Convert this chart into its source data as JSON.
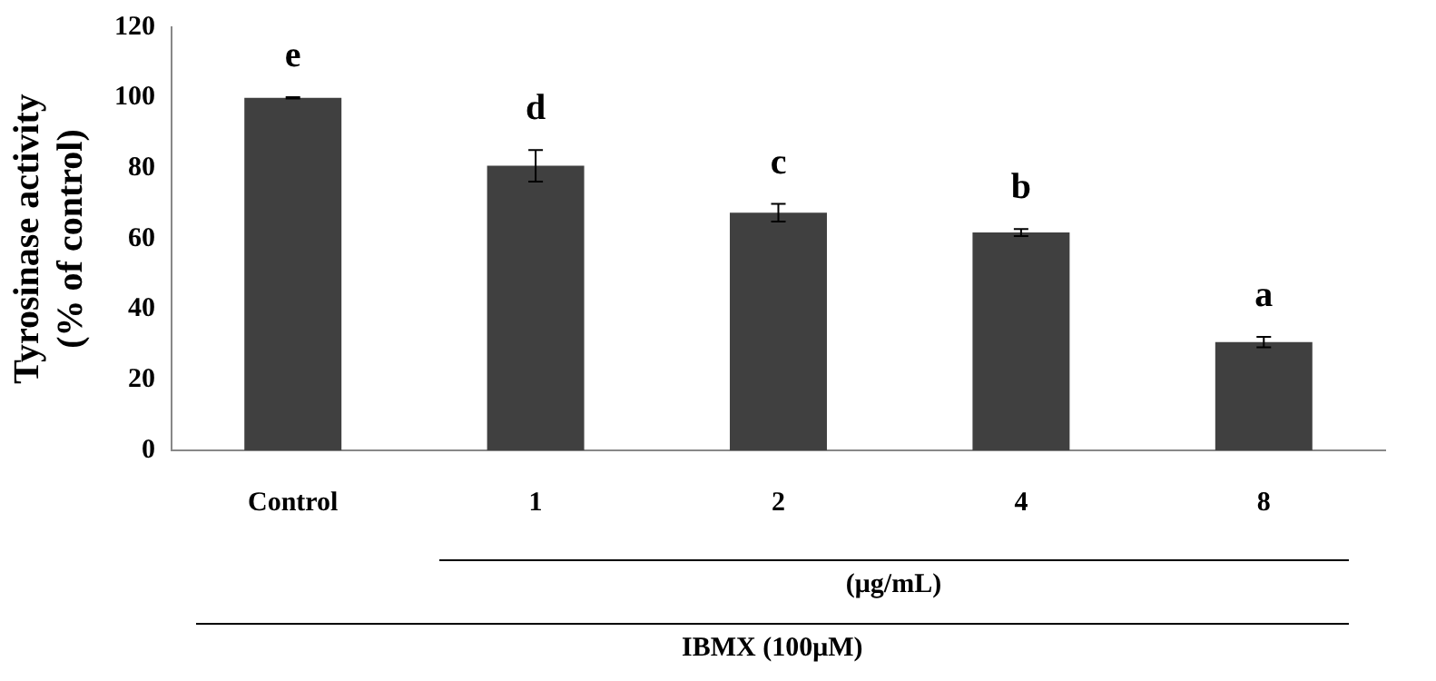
{
  "chart_data": {
    "type": "bar",
    "ylabel": "Tyrosinase activity\n(% of control)",
    "categories": [
      "Control",
      "1",
      "2",
      "4",
      "8"
    ],
    "values": [
      100,
      80.7,
      67.4,
      61.8,
      30.7
    ],
    "errors": [
      0.2,
      4.5,
      2.5,
      1,
      1.5
    ],
    "color": "#404040",
    "ylim": [
      0,
      120
    ],
    "yticks": [
      0,
      20,
      40,
      60,
      80,
      100,
      120
    ],
    "grid": false,
    "annotations": [
      "e",
      "d",
      "c",
      "b",
      "a",
      "(μg/mL)",
      "IBMX (100μM)"
    ]
  }
}
